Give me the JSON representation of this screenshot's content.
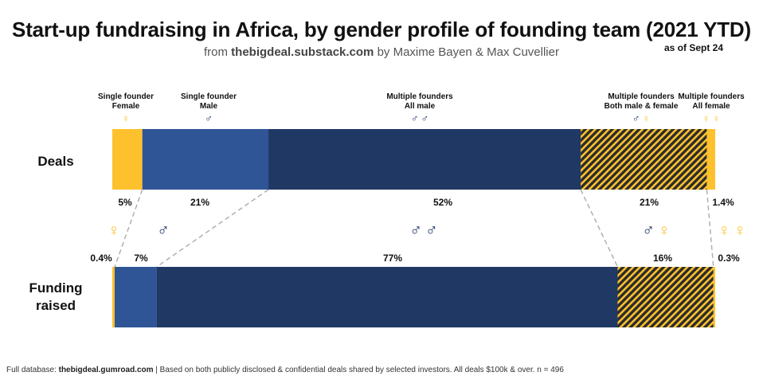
{
  "title": "Start-up fundraising in Africa, by gender profile of founding team (2021 YTD)",
  "subtitle": {
    "prefix": "from",
    "source": "thebigdeal.substack.com",
    "suffix": "by Maxime Bayen & Max Cuvellier"
  },
  "as_of": "as of Sept 24",
  "footer": {
    "prefix": "Full database:",
    "source": "thebigdeal.gumroad.com",
    "note": "| Based on both publicly disclosed & confidential deals shared by selected investors. All deals $100k & over. n = 496"
  },
  "colors": {
    "female": "#FDC12E",
    "male": "#2F5597",
    "all_male": "#1F3864",
    "mixed_hatch": "#FDC12E",
    "mixed_bg": "#2B2B2B"
  },
  "chart_data": {
    "type": "bar",
    "orientation": "horizontal",
    "stacked": "100%",
    "categories": [
      "Single founder Female",
      "Single founder Male",
      "Multiple founders All male",
      "Multiple founders Both male & female",
      "Multiple founders All female"
    ],
    "category_labels": [
      [
        "Single founder",
        "Female"
      ],
      [
        "Single founder",
        "Male"
      ],
      [
        "Multiple founders",
        "All male"
      ],
      [
        "Multiple founders",
        "Both male & female"
      ],
      [
        "Multiple founders",
        "All female"
      ]
    ],
    "category_symbols": [
      "♀",
      "♂",
      "♂♂",
      "♂♀",
      "♀♀"
    ],
    "series": [
      {
        "name": "Deals",
        "label": [
          "Deals"
        ],
        "values": [
          5,
          21,
          52,
          21,
          1.4
        ],
        "value_labels": [
          "5%",
          "21%",
          "52%",
          "21%",
          "1.4%"
        ]
      },
      {
        "name": "Funding raised",
        "label": [
          "Funding",
          "raised"
        ],
        "values": [
          0.4,
          7,
          77,
          16,
          0.3
        ],
        "value_labels": [
          "0.4%",
          "7%",
          "77%",
          "16%",
          "0.3%"
        ]
      }
    ],
    "xlim": [
      0,
      100
    ]
  }
}
